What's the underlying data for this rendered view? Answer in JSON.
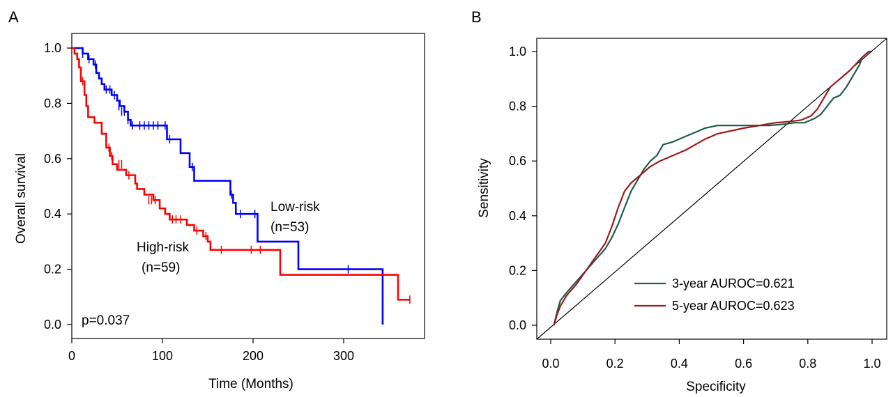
{
  "chart_data": [
    {
      "type": "line",
      "subtype": "kaplan-meier",
      "panel_label": "A",
      "xlabel": "Time (Months)",
      "ylabel": "Overall survival",
      "xlim": [
        0,
        380
      ],
      "ylim": [
        0,
        1
      ],
      "xticks": [
        "0",
        "100",
        "200",
        "300"
      ],
      "yticks": [
        "0.0",
        "0.2",
        "0.4",
        "0.6",
        "0.8",
        "1.0"
      ],
      "grid": false,
      "annotations": {
        "pvalue": "p=0.037",
        "low_label": "Low-risk",
        "low_n": "(n=53)",
        "high_label": "High-risk",
        "high_n": "(n=59)"
      },
      "series": [
        {
          "name": "Low-risk",
          "color": "#0000ff",
          "steps": [
            [
              0,
              1.0
            ],
            [
              12,
              0.98
            ],
            [
              18,
              0.96
            ],
            [
              24,
              0.94
            ],
            [
              27,
              0.91
            ],
            [
              30,
              0.89
            ],
            [
              33,
              0.87
            ],
            [
              36,
              0.85
            ],
            [
              44,
              0.83
            ],
            [
              50,
              0.81
            ],
            [
              53,
              0.79
            ],
            [
              58,
              0.77
            ],
            [
              62,
              0.74
            ],
            [
              65,
              0.72
            ],
            [
              105,
              0.67
            ],
            [
              120,
              0.62
            ],
            [
              130,
              0.57
            ],
            [
              135,
              0.52
            ],
            [
              175,
              0.47
            ],
            [
              178,
              0.44
            ],
            [
              181,
              0.4
            ],
            [
              205,
              0.3
            ],
            [
              250,
              0.2
            ],
            [
              343,
              0.0
            ]
          ],
          "censor": [
            [
              12,
              0.98
            ],
            [
              19,
              0.96
            ],
            [
              26,
              0.94
            ],
            [
              38,
              0.85
            ],
            [
              42,
              0.85
            ],
            [
              47,
              0.83
            ],
            [
              52,
              0.79
            ],
            [
              55,
              0.77
            ],
            [
              58,
              0.77
            ],
            [
              62,
              0.74
            ],
            [
              67,
              0.72
            ],
            [
              75,
              0.72
            ],
            [
              80,
              0.72
            ],
            [
              85,
              0.72
            ],
            [
              90,
              0.72
            ],
            [
              95,
              0.72
            ],
            [
              103,
              0.72
            ],
            [
              108,
              0.67
            ],
            [
              133,
              0.57
            ],
            [
              176,
              0.47
            ],
            [
              186,
              0.4
            ],
            [
              202,
              0.4
            ],
            [
              305,
              0.2
            ]
          ]
        },
        {
          "name": "High-risk",
          "color": "#ff0000",
          "steps": [
            [
              0,
              1.0
            ],
            [
              3,
              0.98
            ],
            [
              6,
              0.96
            ],
            [
              8,
              0.93
            ],
            [
              10,
              0.88
            ],
            [
              14,
              0.83
            ],
            [
              16,
              0.79
            ],
            [
              18,
              0.75
            ],
            [
              25,
              0.73
            ],
            [
              33,
              0.69
            ],
            [
              38,
              0.64
            ],
            [
              42,
              0.61
            ],
            [
              45,
              0.58
            ],
            [
              50,
              0.56
            ],
            [
              60,
              0.54
            ],
            [
              70,
              0.51
            ],
            [
              72,
              0.49
            ],
            [
              80,
              0.47
            ],
            [
              90,
              0.45
            ],
            [
              97,
              0.42
            ],
            [
              103,
              0.4
            ],
            [
              108,
              0.38
            ],
            [
              127,
              0.36
            ],
            [
              135,
              0.34
            ],
            [
              145,
              0.32
            ],
            [
              150,
              0.3
            ],
            [
              153,
              0.27
            ],
            [
              230,
              0.18
            ],
            [
              360,
              0.09
            ],
            [
              373,
              0.09
            ]
          ],
          "censor": [
            [
              12,
              0.88
            ],
            [
              41,
              0.64
            ],
            [
              44,
              0.61
            ],
            [
              52,
              0.58
            ],
            [
              55,
              0.58
            ],
            [
              63,
              0.54
            ],
            [
              85,
              0.45
            ],
            [
              88,
              0.45
            ],
            [
              92,
              0.45
            ],
            [
              111,
              0.38
            ],
            [
              115,
              0.38
            ],
            [
              120,
              0.38
            ],
            [
              138,
              0.34
            ],
            [
              148,
              0.32
            ],
            [
              165,
              0.27
            ],
            [
              198,
              0.27
            ],
            [
              208,
              0.27
            ],
            [
              373,
              0.09
            ]
          ]
        }
      ]
    },
    {
      "type": "line",
      "subtype": "roc",
      "panel_label": "B",
      "xlabel": "Specificity",
      "ylabel": "Sensitivity",
      "xlim": [
        1.0,
        0.0
      ],
      "ylim": [
        0,
        1
      ],
      "xticks": [
        "0.0",
        "0.2",
        "0.4",
        "0.6",
        "0.8",
        "1.0"
      ],
      "yticks": [
        "0.0",
        "0.2",
        "0.4",
        "0.6",
        "0.8",
        "1.0"
      ],
      "grid": false,
      "legend_position": "bottom-center",
      "diagonal": true,
      "series": [
        {
          "name": "3-year AUROC=0.621",
          "color": "#1e5c4b",
          "points": [
            [
              0.99,
              0.0
            ],
            [
              0.98,
              0.05
            ],
            [
              0.97,
              0.09
            ],
            [
              0.95,
              0.12
            ],
            [
              0.92,
              0.16
            ],
            [
              0.89,
              0.2
            ],
            [
              0.86,
              0.24
            ],
            [
              0.83,
              0.28
            ],
            [
              0.81,
              0.32
            ],
            [
              0.79,
              0.37
            ],
            [
              0.77,
              0.43
            ],
            [
              0.75,
              0.49
            ],
            [
              0.73,
              0.53
            ],
            [
              0.71,
              0.57
            ],
            [
              0.69,
              0.6
            ],
            [
              0.67,
              0.62
            ],
            [
              0.65,
              0.66
            ],
            [
              0.62,
              0.67
            ],
            [
              0.58,
              0.69
            ],
            [
              0.54,
              0.71
            ],
            [
              0.52,
              0.72
            ],
            [
              0.48,
              0.73
            ],
            [
              0.4,
              0.73
            ],
            [
              0.32,
              0.73
            ],
            [
              0.27,
              0.735
            ],
            [
              0.24,
              0.74
            ],
            [
              0.21,
              0.74
            ],
            [
              0.18,
              0.755
            ],
            [
              0.16,
              0.77
            ],
            [
              0.14,
              0.8
            ],
            [
              0.12,
              0.83
            ],
            [
              0.1,
              0.84
            ],
            [
              0.08,
              0.87
            ],
            [
              0.06,
              0.91
            ],
            [
              0.04,
              0.95
            ],
            [
              0.03,
              0.98
            ],
            [
              0.01,
              1.0
            ],
            [
              0.0,
              1.0
            ]
          ]
        },
        {
          "name": "5-year AUROC=0.623",
          "color": "#9b1b1b",
          "points": [
            [
              0.99,
              0.0
            ],
            [
              0.98,
              0.04
            ],
            [
              0.97,
              0.07
            ],
            [
              0.95,
              0.11
            ],
            [
              0.92,
              0.15
            ],
            [
              0.89,
              0.2
            ],
            [
              0.86,
              0.25
            ],
            [
              0.83,
              0.3
            ],
            [
              0.81,
              0.36
            ],
            [
              0.79,
              0.43
            ],
            [
              0.77,
              0.49
            ],
            [
              0.75,
              0.52
            ],
            [
              0.73,
              0.54
            ],
            [
              0.71,
              0.56
            ],
            [
              0.69,
              0.58
            ],
            [
              0.66,
              0.6
            ],
            [
              0.62,
              0.62
            ],
            [
              0.58,
              0.64
            ],
            [
              0.55,
              0.66
            ],
            [
              0.52,
              0.68
            ],
            [
              0.48,
              0.7
            ],
            [
              0.44,
              0.71
            ],
            [
              0.4,
              0.72
            ],
            [
              0.35,
              0.73
            ],
            [
              0.3,
              0.74
            ],
            [
              0.25,
              0.745
            ],
            [
              0.22,
              0.75
            ],
            [
              0.19,
              0.765
            ],
            [
              0.17,
              0.79
            ],
            [
              0.15,
              0.83
            ],
            [
              0.13,
              0.87
            ],
            [
              0.11,
              0.89
            ],
            [
              0.09,
              0.91
            ],
            [
              0.07,
              0.93
            ],
            [
              0.05,
              0.955
            ],
            [
              0.03,
              0.98
            ],
            [
              0.01,
              1.0
            ],
            [
              0.0,
              1.0
            ]
          ]
        }
      ]
    }
  ]
}
